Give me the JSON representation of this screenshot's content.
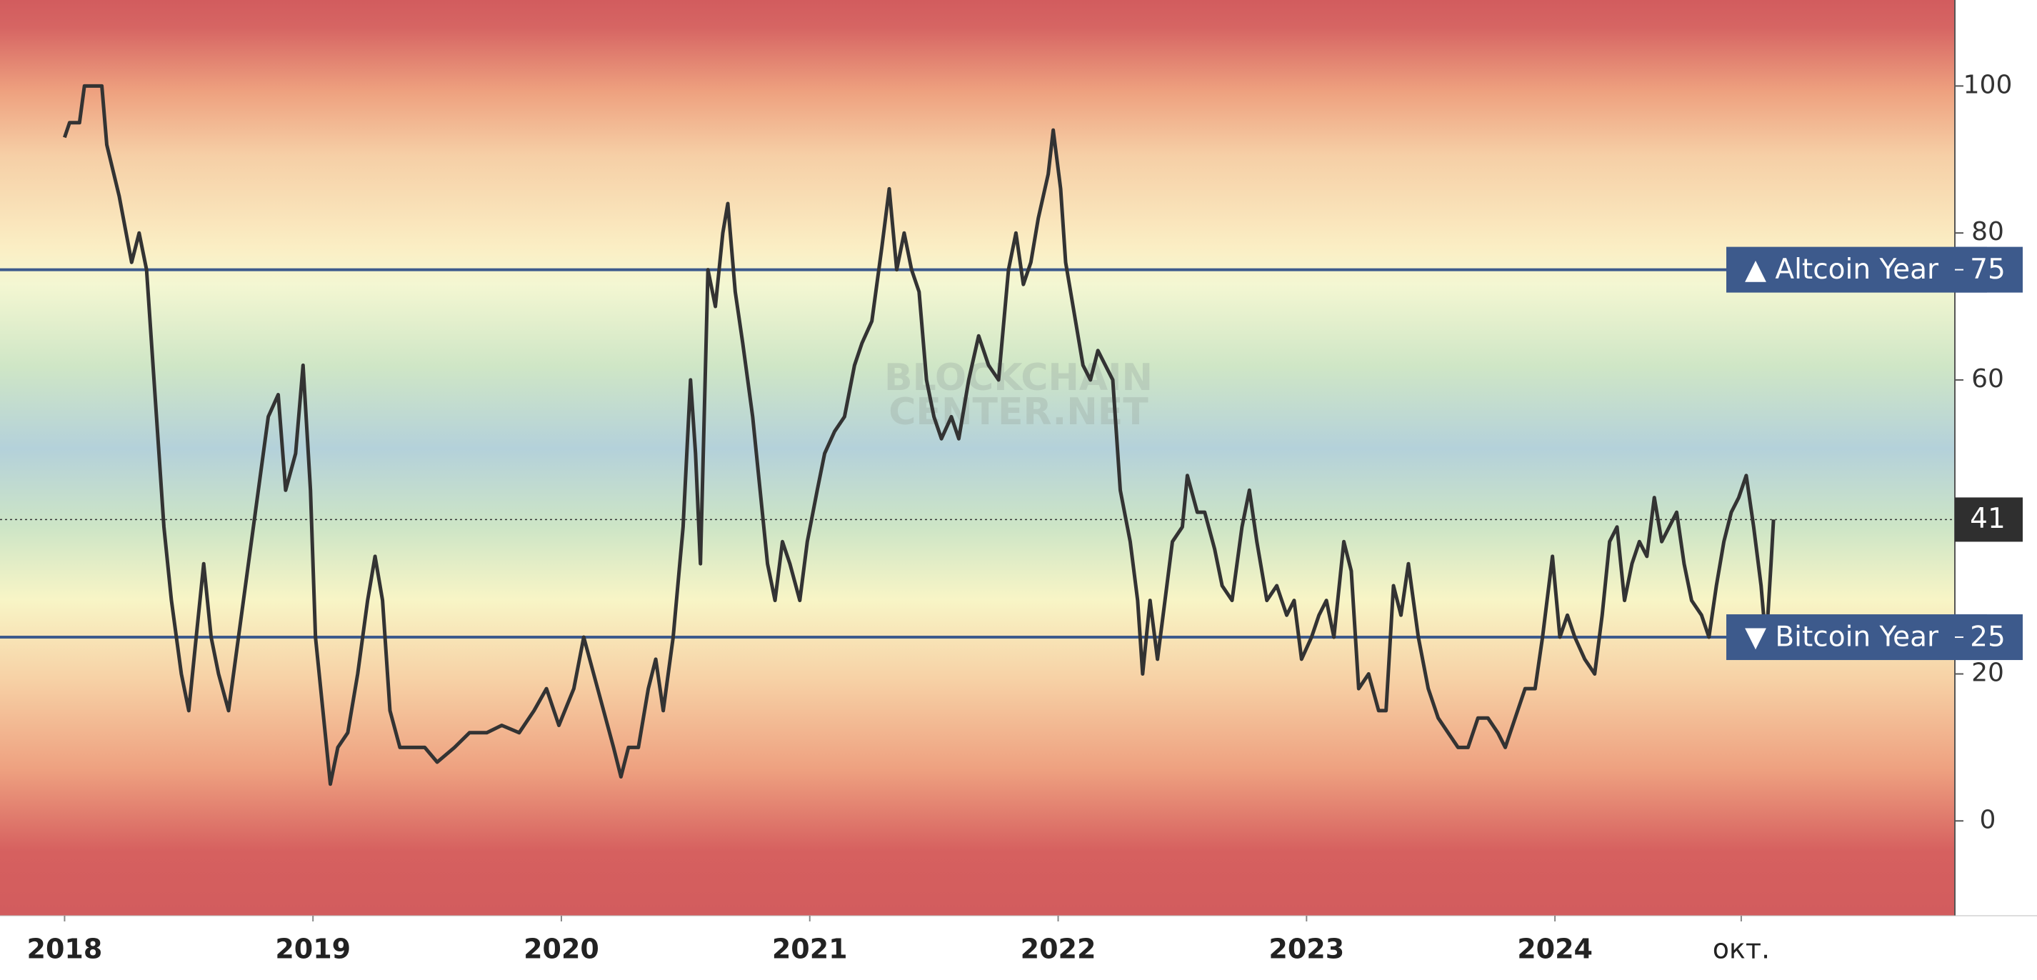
{
  "chart_data": {
    "type": "line",
    "color": "#333333",
    "watermark": [
      "BLOCKCHAIN",
      "CENTER.NET"
    ],
    "x": [
      2018.0,
      2018.02,
      2018.06,
      2018.08,
      2018.15,
      2018.17,
      2018.22,
      2018.27,
      2018.3,
      2018.33,
      2018.37,
      2018.4,
      2018.43,
      2018.47,
      2018.5,
      2018.53,
      2018.56,
      2018.59,
      2018.62,
      2018.66,
      2018.7,
      2018.74,
      2018.78,
      2018.82,
      2018.86,
      2018.89,
      2018.93,
      2018.96,
      2018.99,
      2019.01,
      2019.04,
      2019.07,
      2019.1,
      2019.14,
      2019.18,
      2019.22,
      2019.25,
      2019.28,
      2019.31,
      2019.35,
      2019.4,
      2019.45,
      2019.5,
      2019.57,
      2019.63,
      2019.7,
      2019.76,
      2019.83,
      2019.89,
      2019.94,
      2019.99,
      2020.05,
      2020.09,
      2020.13,
      2020.17,
      2020.21,
      2020.24,
      2020.27,
      2020.31,
      2020.35,
      2020.38,
      2020.41,
      2020.45,
      2020.49,
      2020.52,
      2020.54,
      2020.56,
      2020.59,
      2020.62,
      2020.65,
      2020.67,
      2020.7,
      2020.73,
      2020.77,
      2020.8,
      2020.83,
      2020.86,
      2020.89,
      2020.92,
      2020.96,
      2020.99,
      2021.03,
      2021.06,
      2021.1,
      2021.14,
      2021.18,
      2021.21,
      2021.25,
      2021.29,
      2021.32,
      2021.35,
      2021.38,
      2021.41,
      2021.44,
      2021.47,
      2021.5,
      2021.53,
      2021.57,
      2021.6,
      2021.64,
      2021.68,
      2021.72,
      2021.76,
      2021.8,
      2021.83,
      2021.86,
      2021.89,
      2021.92,
      2021.96,
      2021.98,
      2022.01,
      2022.03,
      2022.06,
      2022.1,
      2022.13,
      2022.16,
      2022.19,
      2022.22,
      2022.25,
      2022.29,
      2022.32,
      2022.34,
      2022.37,
      2022.4,
      2022.43,
      2022.46,
      2022.5,
      2022.52,
      2022.56,
      2022.59,
      2022.63,
      2022.66,
      2022.7,
      2022.74,
      2022.77,
      2022.8,
      2022.84,
      2022.88,
      2022.92,
      2022.95,
      2022.98,
      2023.02,
      2023.05,
      2023.08,
      2023.11,
      2023.15,
      2023.18,
      2023.21,
      2023.25,
      2023.29,
      2023.32,
      2023.35,
      2023.38,
      2023.41,
      2023.45,
      2023.49,
      2023.53,
      2023.57,
      2023.61,
      2023.65,
      2023.69,
      2023.73,
      2023.77,
      2023.8,
      2023.84,
      2023.88,
      2023.92,
      2023.95,
      2023.99,
      2024.02,
      2024.05,
      2024.08,
      2024.12,
      2024.16,
      2024.19,
      2024.22,
      2024.25,
      2024.28,
      2024.31,
      2024.34,
      2024.37,
      2024.4,
      2024.43,
      2024.46,
      2024.49,
      2024.52,
      2024.55,
      2024.59,
      2024.62,
      2024.65,
      2024.68,
      2024.71,
      2024.74,
      2024.77,
      2024.8,
      2024.83,
      2024.85,
      2024.87,
      2024.88
    ],
    "values": [
      93,
      95,
      95,
      100,
      100,
      92,
      85,
      76,
      80,
      75,
      55,
      40,
      30,
      20,
      15,
      25,
      35,
      25,
      20,
      15,
      25,
      35,
      45,
      55,
      58,
      45,
      50,
      62,
      45,
      25,
      15,
      5,
      10,
      12,
      20,
      30,
      36,
      30,
      15,
      10,
      10,
      10,
      8,
      10,
      12,
      12,
      13,
      12,
      15,
      18,
      13,
      18,
      25,
      20,
      15,
      10,
      6,
      10,
      10,
      18,
      22,
      15,
      25,
      40,
      60,
      50,
      35,
      75,
      70,
      80,
      84,
      72,
      65,
      55,
      45,
      35,
      30,
      38,
      35,
      30,
      38,
      45,
      50,
      53,
      55,
      62,
      65,
      68,
      78,
      86,
      75,
      80,
      75,
      72,
      60,
      55,
      52,
      55,
      52,
      60,
      66,
      62,
      60,
      75,
      80,
      73,
      76,
      82,
      88,
      94,
      86,
      76,
      70,
      62,
      60,
      64,
      62,
      60,
      45,
      38,
      30,
      20,
      30,
      22,
      30,
      38,
      40,
      47,
      42,
      42,
      37,
      32,
      30,
      40,
      45,
      38,
      30,
      32,
      28,
      30,
      22,
      25,
      28,
      30,
      25,
      38,
      34,
      18,
      20,
      15,
      15,
      32,
      28,
      35,
      25,
      18,
      14,
      12,
      10,
      10,
      14,
      14,
      12,
      10,
      14,
      18,
      18,
      25,
      36,
      25,
      28,
      25,
      22,
      20,
      28,
      38,
      40,
      30,
      35,
      38,
      36,
      44,
      38,
      40,
      42,
      35,
      30,
      28,
      25,
      32,
      38,
      42,
      44,
      47,
      40,
      32,
      24,
      35,
      41
    ],
    "xlim": [
      2017.74,
      2025.61
    ],
    "ylim": [
      -12.9,
      111.7
    ],
    "xticks": [
      2018,
      2019,
      2020,
      2021,
      2022,
      2023,
      2024,
      {
        "value": 2024.75,
        "label": "окт."
      }
    ],
    "yticks": [
      0,
      20,
      60,
      80,
      100
    ],
    "reference_lines": [
      {
        "value": 75,
        "label": "▲ Altcoin Year",
        "color": "#3d5a8c"
      },
      {
        "value": 25,
        "label": "▼ Bitcoin Year",
        "color": "#3d5a8c"
      }
    ]
  }
}
